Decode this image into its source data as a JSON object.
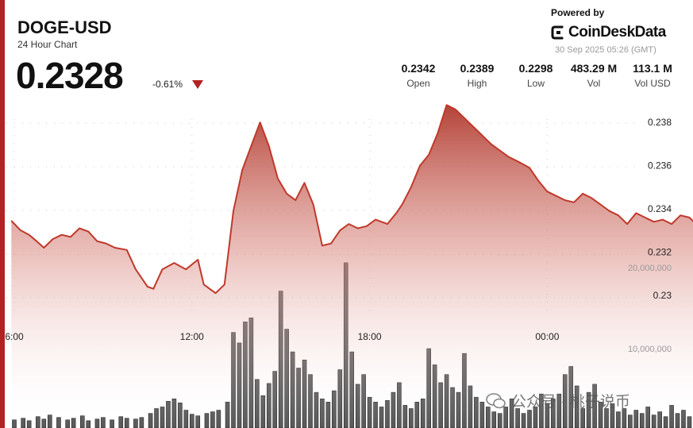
{
  "header": {
    "symbol": "DOGE-USD",
    "subtitle": "24 Hour Chart",
    "price": "0.2328",
    "change": "-0.61%",
    "powered_by": "Powered by",
    "brand": "CoinDeskData",
    "timestamp": "30 Sep 2025 05:26 (GMT)"
  },
  "stats": [
    {
      "value": "0.2342",
      "label": "Open"
    },
    {
      "value": "0.2389",
      "label": "High"
    },
    {
      "value": "0.2298",
      "label": "Low"
    },
    {
      "value": "483.29 M",
      "label": "Vol"
    },
    {
      "value": "113.1 M",
      "label": "Vol USD"
    }
  ],
  "watermark": "公众号 · 桃子说币",
  "colors": {
    "accent": "#b22222",
    "line": "#c0392b",
    "volume": "#555555"
  },
  "chart_data": {
    "type": "line",
    "price_axis": {
      "ticks": [
        0.23,
        0.232,
        0.234,
        0.236,
        0.238
      ],
      "tick_labels": [
        "0.23",
        "0.232",
        "0.234",
        "0.236",
        "0.238"
      ],
      "range": [
        0.2298,
        0.2389
      ]
    },
    "volume_axis": {
      "ticks": [
        10000000,
        20000000
      ],
      "tick_labels": [
        "10,000,000",
        "20,000,000"
      ]
    },
    "time_ticks": [
      {
        "x": 0,
        "label": "6:00"
      },
      {
        "x": 6,
        "label": "12:00"
      },
      {
        "x": 12,
        "label": "18:00"
      },
      {
        "x": 18,
        "label": "00:00"
      }
    ],
    "grid": "dotted",
    "price_series": [
      [
        -0.1,
        0.23345
      ],
      [
        0.2,
        0.23302
      ],
      [
        0.5,
        0.2328
      ],
      [
        0.8,
        0.23245
      ],
      [
        1.0,
        0.2322
      ],
      [
        1.3,
        0.2326
      ],
      [
        1.6,
        0.2328
      ],
      [
        1.9,
        0.2327
      ],
      [
        2.2,
        0.2331
      ],
      [
        2.5,
        0.23295
      ],
      [
        2.8,
        0.2325
      ],
      [
        3.1,
        0.2324
      ],
      [
        3.4,
        0.2322
      ],
      [
        3.8,
        0.2321
      ],
      [
        4.1,
        0.2312
      ],
      [
        4.5,
        0.2304
      ],
      [
        4.7,
        0.2303
      ],
      [
        5.0,
        0.2312
      ],
      [
        5.4,
        0.2315
      ],
      [
        5.8,
        0.2312
      ],
      [
        6.2,
        0.23165
      ],
      [
        6.4,
        0.2305
      ],
      [
        6.8,
        0.2301
      ],
      [
        7.1,
        0.2305
      ],
      [
        7.4,
        0.2339
      ],
      [
        7.7,
        0.2358
      ],
      [
        8.0,
        0.2369
      ],
      [
        8.3,
        0.238
      ],
      [
        8.6,
        0.2369
      ],
      [
        8.9,
        0.2354
      ],
      [
        9.2,
        0.2347
      ],
      [
        9.5,
        0.2344
      ],
      [
        9.8,
        0.2352
      ],
      [
        10.1,
        0.2342
      ],
      [
        10.4,
        0.2323
      ],
      [
        10.7,
        0.2324
      ],
      [
        11.0,
        0.233
      ],
      [
        11.3,
        0.2333
      ],
      [
        11.6,
        0.2331
      ],
      [
        11.9,
        0.2332
      ],
      [
        12.2,
        0.2335
      ],
      [
        12.6,
        0.2333
      ],
      [
        12.9,
        0.2338
      ],
      [
        13.1,
        0.2342
      ],
      [
        13.4,
        0.235
      ],
      [
        13.7,
        0.236
      ],
      [
        14.0,
        0.2365
      ],
      [
        14.3,
        0.2375
      ],
      [
        14.6,
        0.2388
      ],
      [
        14.9,
        0.2386
      ],
      [
        15.2,
        0.2382
      ],
      [
        15.5,
        0.2378
      ],
      [
        15.8,
        0.2374
      ],
      [
        16.1,
        0.237
      ],
      [
        16.4,
        0.2367
      ],
      [
        16.7,
        0.2364
      ],
      [
        17.0,
        0.2362
      ],
      [
        17.4,
        0.2359
      ],
      [
        17.7,
        0.2353
      ],
      [
        18.0,
        0.2348
      ],
      [
        18.3,
        0.2346
      ],
      [
        18.6,
        0.2344
      ],
      [
        18.9,
        0.2343
      ],
      [
        19.2,
        0.2347
      ],
      [
        19.5,
        0.2345
      ],
      [
        19.8,
        0.2342
      ],
      [
        20.1,
        0.2339
      ],
      [
        20.4,
        0.2337
      ],
      [
        20.7,
        0.2333
      ],
      [
        21.0,
        0.2338
      ],
      [
        21.3,
        0.2336
      ],
      [
        21.6,
        0.2334
      ],
      [
        21.9,
        0.2335
      ],
      [
        22.2,
        0.2333
      ],
      [
        22.5,
        0.2337
      ],
      [
        22.8,
        0.2336
      ],
      [
        23.1,
        0.2332
      ],
      [
        23.4,
        0.233
      ],
      [
        23.7,
        0.23315
      ]
    ],
    "volume_series": [
      [
        0.0,
        1
      ],
      [
        0.3,
        1.2
      ],
      [
        0.5,
        0.9
      ],
      [
        0.8,
        1.4
      ],
      [
        1.0,
        1.1
      ],
      [
        1.2,
        1.6
      ],
      [
        1.5,
        1.3
      ],
      [
        1.8,
        1.0
      ],
      [
        2.0,
        1.2
      ],
      [
        2.3,
        1.5
      ],
      [
        2.5,
        0.9
      ],
      [
        2.8,
        1.1
      ],
      [
        3.0,
        1.3
      ],
      [
        3.3,
        1.0
      ],
      [
        3.6,
        1.4
      ],
      [
        3.8,
        1.2
      ],
      [
        4.1,
        1.1
      ],
      [
        4.3,
        1.3
      ],
      [
        4.6,
        1.8
      ],
      [
        4.8,
        2.4
      ],
      [
        5.0,
        2.6
      ],
      [
        5.2,
        3.3
      ],
      [
        5.4,
        3.6
      ],
      [
        5.6,
        3.1
      ],
      [
        5.8,
        2.2
      ],
      [
        6.0,
        1.7
      ],
      [
        6.2,
        1.5
      ],
      [
        6.5,
        1.8
      ],
      [
        6.7,
        2.0
      ],
      [
        6.9,
        2.2
      ],
      [
        7.2,
        3.2
      ],
      [
        7.4,
        11.8
      ],
      [
        7.6,
        10.5
      ],
      [
        7.8,
        13.1
      ],
      [
        8.0,
        13.6
      ],
      [
        8.2,
        6.0
      ],
      [
        8.4,
        4.0
      ],
      [
        8.6,
        5.5
      ],
      [
        8.8,
        7.0
      ],
      [
        9.0,
        16.9
      ],
      [
        9.2,
        12.2
      ],
      [
        9.4,
        9.4
      ],
      [
        9.6,
        7.4
      ],
      [
        9.8,
        8.4
      ],
      [
        10.0,
        6.6
      ],
      [
        10.2,
        4.4
      ],
      [
        10.4,
        3.6
      ],
      [
        10.6,
        3.2
      ],
      [
        10.8,
        4.6
      ],
      [
        11.0,
        7.2
      ],
      [
        11.2,
        20.4
      ],
      [
        11.4,
        9.4
      ],
      [
        11.6,
        5.4
      ],
      [
        11.8,
        6.6
      ],
      [
        12.0,
        3.8
      ],
      [
        12.2,
        3.2
      ],
      [
        12.4,
        2.6
      ],
      [
        12.6,
        3.4
      ],
      [
        12.8,
        4.4
      ],
      [
        13.0,
        5.6
      ],
      [
        13.2,
        2.8
      ],
      [
        13.4,
        2.4
      ],
      [
        13.6,
        3.2
      ],
      [
        13.8,
        3.6
      ],
      [
        14.0,
        9.8
      ],
      [
        14.2,
        7.8
      ],
      [
        14.4,
        5.6
      ],
      [
        14.6,
        6.6
      ],
      [
        14.8,
        5.0
      ],
      [
        15.0,
        4.4
      ],
      [
        15.2,
        9.2
      ],
      [
        15.4,
        5.2
      ],
      [
        15.6,
        3.8
      ],
      [
        15.8,
        3.2
      ],
      [
        16.0,
        2.6
      ],
      [
        16.2,
        2.0
      ],
      [
        16.4,
        1.8
      ],
      [
        16.6,
        2.6
      ],
      [
        16.8,
        3.6
      ],
      [
        17.0,
        2.4
      ],
      [
        17.2,
        1.8
      ],
      [
        17.4,
        2.2
      ],
      [
        17.6,
        2.6
      ],
      [
        17.8,
        4.2
      ],
      [
        18.0,
        3.0
      ],
      [
        18.2,
        3.6
      ],
      [
        18.4,
        4.2
      ],
      [
        18.6,
        6.6
      ],
      [
        18.8,
        7.6
      ],
      [
        19.0,
        5.2
      ],
      [
        19.2,
        2.4
      ],
      [
        19.4,
        4.4
      ],
      [
        19.6,
        5.4
      ],
      [
        19.8,
        3.2
      ],
      [
        20.0,
        2.4
      ],
      [
        20.2,
        3.0
      ],
      [
        20.4,
        2.0
      ],
      [
        20.6,
        2.4
      ],
      [
        20.8,
        1.6
      ],
      [
        21.0,
        2.2
      ],
      [
        21.2,
        1.8
      ],
      [
        21.4,
        2.6
      ],
      [
        21.6,
        1.6
      ],
      [
        21.8,
        2.0
      ],
      [
        22.0,
        1.4
      ],
      [
        22.2,
        2.8
      ],
      [
        22.4,
        1.8
      ],
      [
        22.6,
        2.2
      ],
      [
        22.8,
        1.4
      ],
      [
        23.0,
        1.8
      ],
      [
        23.2,
        2.4
      ],
      [
        23.4,
        1.6
      ],
      [
        23.6,
        1.2
      ]
    ]
  }
}
